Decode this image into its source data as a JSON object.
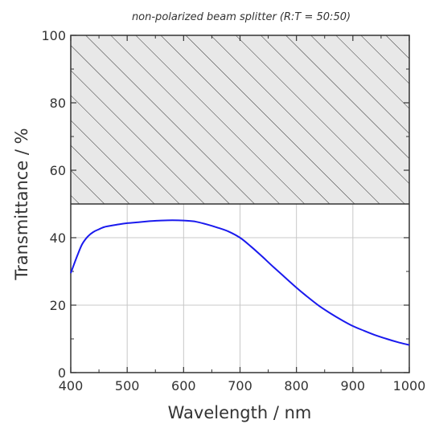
{
  "chart_data": {
    "type": "line",
    "title": "non-polarized beam splitter  (R:T = 50:50)",
    "xlabel": "Wavelength / nm",
    "ylabel": "Transmittance / %",
    "xlim": [
      400,
      1000
    ],
    "ylim": [
      0,
      100
    ],
    "xticks": [
      "400",
      "500",
      "600",
      "700",
      "800",
      "900",
      "1000"
    ],
    "yticks": [
      "0",
      "20",
      "40",
      "60",
      "80",
      "100"
    ],
    "grid": true,
    "hatched_region": {
      "y_from": 50,
      "y_to": 100
    },
    "series": [
      {
        "color": "#1a1aee",
        "x": [
          400,
          410,
          420,
          430,
          440,
          450,
          460,
          480,
          500,
          520,
          540,
          560,
          580,
          600,
          620,
          640,
          660,
          680,
          700,
          720,
          740,
          760,
          780,
          800,
          820,
          840,
          860,
          880,
          900,
          920,
          940,
          960,
          980,
          1000
        ],
        "y": [
          29.5,
          34,
          38,
          40.3,
          41.7,
          42.5,
          43.2,
          43.8,
          44.3,
          44.6,
          44.9,
          45.1,
          45.2,
          45.1,
          44.8,
          44.0,
          43.0,
          41.8,
          40.0,
          37.3,
          34.3,
          31.2,
          28.2,
          25.2,
          22.4,
          19.8,
          17.6,
          15.6,
          13.8,
          12.4,
          11.1,
          10.0,
          9.0,
          8.2
        ]
      }
    ]
  }
}
